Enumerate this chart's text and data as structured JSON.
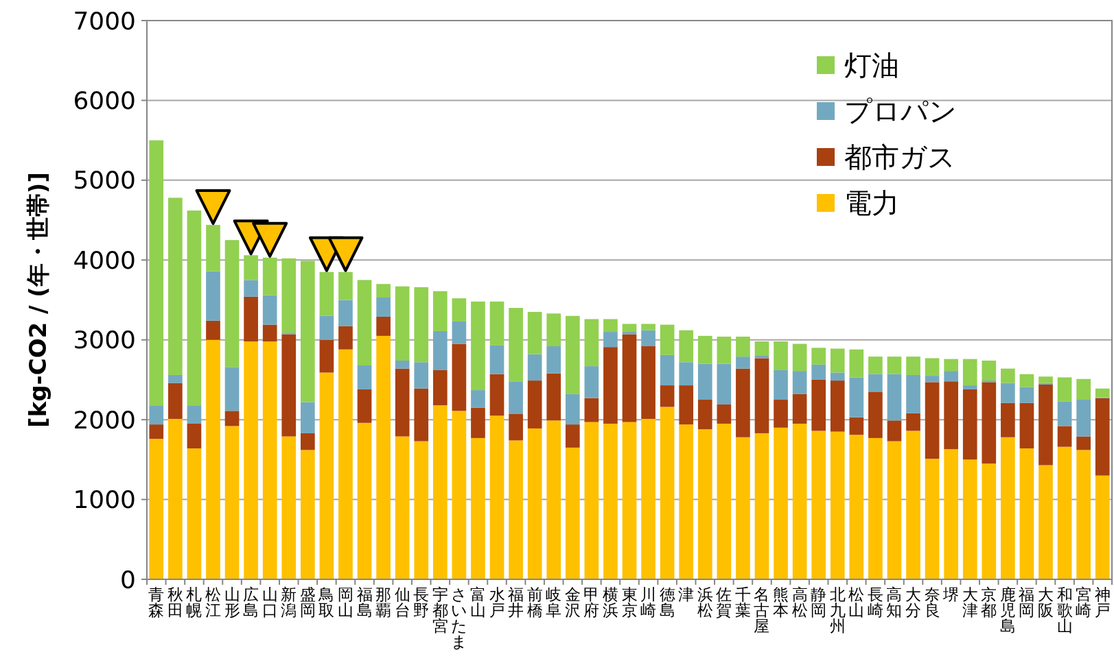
{
  "chart_data": {
    "type": "bar",
    "stacked": true,
    "ylabel": "[kg-CO2 / (年・世帯)]",
    "categories": [
      "青森",
      "秋田",
      "札幌",
      "松江",
      "山形",
      "広島",
      "山口",
      "新潟",
      "盛岡",
      "鳥取",
      "岡山",
      "福島",
      "那覇",
      "仙台",
      "長野",
      "宇都宮",
      "さいたま",
      "富山",
      "水戸",
      "福井",
      "前橋",
      "岐阜",
      "金沢",
      "甲府",
      "横浜",
      "東京",
      "川崎",
      "徳島",
      "津",
      "浜松",
      "佐賀",
      "千葉",
      "名古屋",
      "熊本",
      "高松",
      "静岡",
      "北九州",
      "松山",
      "長崎",
      "高知",
      "大分",
      "奈良",
      "堺",
      "大津",
      "京都",
      "鹿児島",
      "福岡",
      "大阪",
      "和歌山",
      "宮崎",
      "神戸"
    ],
    "series": [
      {
        "name": "電力",
        "color": "#ffc000",
        "values": [
          1760,
          2010,
          1640,
          3000,
          1920,
          2980,
          2980,
          1790,
          1620,
          2590,
          2880,
          1960,
          3050,
          1790,
          1730,
          2180,
          2110,
          1770,
          2050,
          1740,
          1890,
          1990,
          1650,
          1970,
          1950,
          1970,
          2010,
          2160,
          1940,
          1880,
          1950,
          1780,
          1830,
          1900,
          1950,
          1860,
          1850,
          1810,
          1770,
          1730,
          1860,
          1510,
          1630,
          1500,
          1450,
          1780,
          1640,
          1430,
          1660,
          1620,
          1300
        ]
      },
      {
        "name": "都市ガス",
        "color": "#a9400f",
        "values": [
          180,
          450,
          310,
          240,
          190,
          560,
          210,
          1280,
          210,
          410,
          290,
          420,
          240,
          850,
          660,
          440,
          840,
          380,
          520,
          330,
          600,
          590,
          290,
          300,
          960,
          1100,
          910,
          270,
          490,
          370,
          240,
          860,
          940,
          350,
          370,
          640,
          640,
          220,
          580,
          260,
          220,
          960,
          850,
          880,
          1020,
          430,
          570,
          1010,
          260,
          170,
          970
        ]
      },
      {
        "name": "プロパン",
        "color": "#73a9c0",
        "values": [
          240,
          100,
          230,
          620,
          550,
          210,
          370,
          20,
          390,
          300,
          330,
          300,
          240,
          100,
          330,
          490,
          280,
          220,
          360,
          410,
          330,
          340,
          380,
          400,
          190,
          30,
          200,
          380,
          290,
          450,
          510,
          150,
          30,
          370,
          290,
          190,
          100,
          500,
          220,
          580,
          480,
          80,
          130,
          50,
          20,
          250,
          200,
          20,
          310,
          460,
          10
        ]
      },
      {
        "name": "灯油",
        "color": "#92d050",
        "values": [
          3320,
          2220,
          2440,
          580,
          1590,
          310,
          470,
          930,
          1770,
          550,
          350,
          1070,
          170,
          930,
          940,
          500,
          290,
          1110,
          550,
          920,
          530,
          410,
          980,
          590,
          160,
          100,
          80,
          380,
          400,
          350,
          340,
          250,
          180,
          360,
          340,
          210,
          300,
          350,
          220,
          220,
          230,
          220,
          150,
          330,
          250,
          180,
          160,
          80,
          300,
          260,
          110
        ]
      }
    ],
    "ylim": [
      0,
      7000
    ],
    "yticks": [
      0,
      1000,
      2000,
      3000,
      4000,
      5000,
      6000,
      7000
    ],
    "grid": "y",
    "legend": "top right"
  }
}
